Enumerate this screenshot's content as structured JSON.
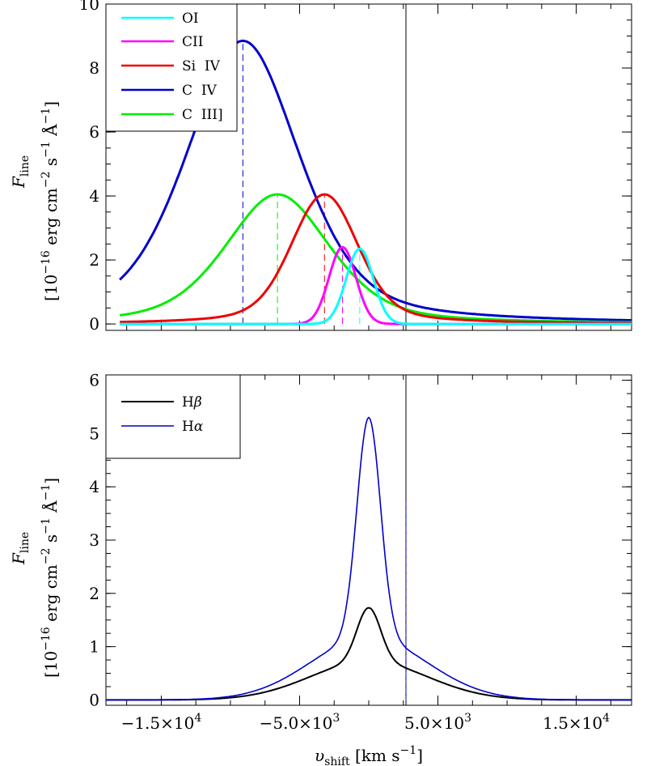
{
  "chart_data": [
    {
      "type": "line",
      "panel": "top",
      "xlim": [
        -19000,
        19000
      ],
      "ylim": [
        -0.2,
        10
      ],
      "yticks": [
        0,
        2,
        4,
        6,
        8,
        10
      ],
      "ytick_labels": [
        "0",
        "2",
        "4",
        "6",
        "8",
        "10"
      ],
      "vertical_line_x": 0,
      "ylabel": {
        "main": "F",
        "sub": "line",
        "unit": "[10^-16 erg cm^-2 s^-1 Å^-1]"
      },
      "legend_position": "top-left",
      "series": [
        {
          "name": "OI",
          "color": "#00ffff",
          "peak_x": -650,
          "peak_y": 2.35,
          "fwhm": 2300
        },
        {
          "name": "CII",
          "color": "#ff00ff",
          "peak_x": -1900,
          "peak_y": 2.4,
          "fwhm": 2300
        },
        {
          "name": "Si IV",
          "color": "#ee0000",
          "peak_x": -3200,
          "peak_y": 4.05,
          "fwhm": 5500
        },
        {
          "name": "C IV",
          "color": "#0000cc",
          "peak_x": -9100,
          "peak_y": 8.85,
          "fwhm": 9700
        },
        {
          "name": "C III]",
          "color": "#00ee00",
          "peak_x": -6600,
          "peak_y": 4.05,
          "fwhm": 9000
        }
      ],
      "legend_labels": {
        "oi": "OI",
        "cii": "CII",
        "si_iv": "Si  IV",
        "c_iv": "C  IV",
        "c_iii": "C  III]"
      }
    },
    {
      "type": "line",
      "panel": "bottom",
      "xlim": [
        -19000,
        19000
      ],
      "ylim": [
        -0.1,
        6.1
      ],
      "yticks": [
        0,
        1,
        2,
        3,
        4,
        5,
        6
      ],
      "ytick_labels": [
        "0",
        "1",
        "2",
        "3",
        "4",
        "5",
        "6"
      ],
      "vertical_line_x": 0,
      "ylabel": {
        "main": "F",
        "sub": "line",
        "unit": "[10^-16 erg cm^-2 s^-1 Å^-1]"
      },
      "legend_position": "top-left",
      "series": [
        {
          "name": "Hβ",
          "color": "#000000",
          "peak_x": 0,
          "peak_y": 1.73
        },
        {
          "name": "Hα",
          "color": "#0000cc",
          "peak_x": 0,
          "peak_y": 5.3
        }
      ],
      "legend_labels": {
        "hb_main": "H",
        "hb_greek": "β",
        "ha_main": "H",
        "ha_greek": "α"
      },
      "xticks": [
        -15000,
        -5000,
        5000,
        15000
      ],
      "xtick_labels": [
        "−1.5×10",
        "−5.0×10",
        "5.0×10",
        "1.5×10"
      ],
      "xtick_exponents": [
        "4",
        "3",
        "3",
        "4"
      ],
      "xlabel": {
        "main": "υ",
        "sub": "shift",
        "unit": "[km s",
        "unit_exp": "−1",
        "unit_end": "]"
      }
    }
  ],
  "ylabel_text": {
    "f": "F",
    "sub": "line",
    "bracket_open": "[10",
    "exp16": "−16",
    "erg_cm": " erg cm",
    "exp2": "−2",
    "s": " s",
    "exp1": "−1",
    "ang": " Å",
    "close": "]"
  }
}
